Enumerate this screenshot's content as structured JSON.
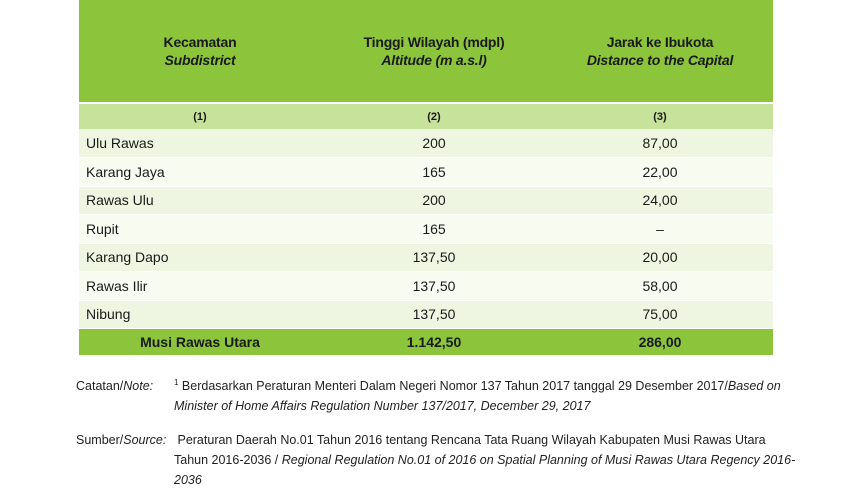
{
  "table": {
    "headers": [
      {
        "main": "Kecamatan",
        "sub": "Subdistrict"
      },
      {
        "main": "Tinggi Wilayah (mdpl)",
        "sub": "Altitude (m a.s.l)"
      },
      {
        "main": "Jarak ke Ibukota",
        "sub": "Distance to the Capital"
      }
    ],
    "column_numbers": [
      "(1)",
      "(2)",
      "(3)"
    ],
    "rows": [
      {
        "name": "Ulu Rawas",
        "altitude": "200",
        "distance": "87,00"
      },
      {
        "name": "Karang Jaya",
        "altitude": "165",
        "distance": "22,00"
      },
      {
        "name": "Rawas Ulu",
        "altitude": "200",
        "distance": "24,00"
      },
      {
        "name": "Rupit",
        "altitude": "165",
        "distance": "–"
      },
      {
        "name": "Karang Dapo",
        "altitude": "137,50",
        "distance": "20,00"
      },
      {
        "name": "Rawas Ilir",
        "altitude": "137,50",
        "distance": "58,00"
      },
      {
        "name": "Nibung",
        "altitude": "137,50",
        "distance": "75,00"
      }
    ],
    "total": {
      "name": "Musi Rawas Utara",
      "altitude": "1.142,50",
      "distance": "286,00"
    }
  },
  "notes": {
    "note_label_id": "Catatan/",
    "note_label_en": "Note:",
    "note_sup": "1",
    "note_text_id": " Berdasarkan Peraturan Menteri Dalam Negeri Nomor 137 Tahun 2017 tanggal 29 Desember 2017/",
    "note_text_en": "Based on Minister of Home Affairs Regulation Number 137/2017, December 29, 2017",
    "source_label_id": "Sumber/",
    "source_label_en": "Source:",
    "source_text_id": "Peraturan Daerah No.01 Tahun 2016 tentang Rencana Tata Ruang Wilayah Kabupaten Musi Rawas Utara Tahun 2016-2036 / ",
    "source_text_en": "Regional Regulation No.01 of 2016 on Spatial Planning of Musi Rawas Utara Regency 2016-2036"
  }
}
